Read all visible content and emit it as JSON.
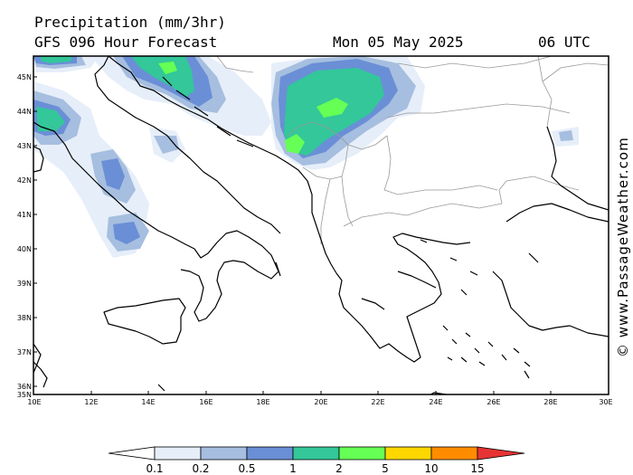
{
  "title": "Precipitation (mm/3hr)",
  "subtitle": "GFS 096 Hour Forecast",
  "valid_date": "Mon 05 May 2025",
  "valid_time": "06 UTC",
  "credit": "© www.PassageWeather.com",
  "lat_labels": [
    "45N",
    "44N",
    "43N",
    "42N",
    "41N",
    "40N",
    "39N",
    "38N",
    "37N",
    "36N",
    "35N"
  ],
  "lon_labels": [
    "10E",
    "12E",
    "14E",
    "16E",
    "18E",
    "20E",
    "22E",
    "24E",
    "26E",
    "28E",
    "30E"
  ],
  "legend": {
    "labels": [
      "0.1",
      "0.2",
      "0.5",
      "1",
      "2",
      "5",
      "10",
      "15"
    ],
    "colors": [
      "#ffffff",
      "#e6eef9",
      "#a6bedf",
      "#6a8fd6",
      "#33c79a",
      "#66ff55",
      "#ffd700",
      "#ff8c00",
      "#e63333"
    ]
  }
}
